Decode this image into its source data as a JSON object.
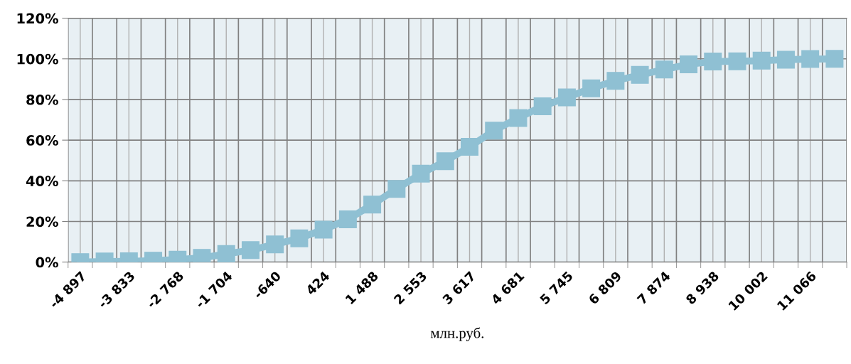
{
  "chart_data": {
    "type": "line",
    "xlabel": "млн.руб.",
    "categories": [
      "-4 897",
      null,
      "-3 833",
      null,
      "-2 768",
      null,
      "-1 704",
      null,
      "-640",
      null,
      "424",
      null,
      "1 488",
      null,
      "2 553",
      null,
      "3 617",
      null,
      "4 681",
      null,
      "5 745",
      null,
      "6 809",
      null,
      "7 874",
      null,
      "8 938",
      null,
      "10 002",
      null,
      "11 066",
      null
    ],
    "series": [
      {
        "color": "#8fc0d3",
        "values": [
          0,
          0.3,
          0.4,
          0.7,
          1.2,
          2.1,
          4,
          5.9,
          8.7,
          11.7,
          16,
          21,
          28.3,
          36,
          43.5,
          49.6,
          56.7,
          64.7,
          70.9,
          76.7,
          81,
          85.5,
          89.2,
          92.1,
          94.8,
          97.3,
          98.7,
          98.8,
          99.1,
          99.6,
          99.9,
          100
        ]
      }
    ],
    "ylim": [
      0,
      120
    ],
    "yticks": [
      {
        "value": 0,
        "label": "0%"
      },
      {
        "value": 20,
        "label": "20%"
      },
      {
        "value": 40,
        "label": "40%"
      },
      {
        "value": 60,
        "label": "60%"
      },
      {
        "value": 80,
        "label": "80%"
      },
      {
        "value": 100,
        "label": "100%"
      },
      {
        "value": 120,
        "label": "120%"
      }
    ],
    "grid": true,
    "legend": false,
    "marker": "square",
    "line_style": "solid"
  }
}
